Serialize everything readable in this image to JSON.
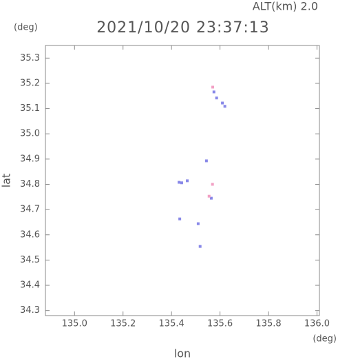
{
  "chart_data": {
    "type": "scatter",
    "title": "2021/10/20 23:37:13",
    "annotation": "ALT(km)  2.0",
    "y_unit": "(deg)",
    "x_unit": "(deg)",
    "x_label": "lon",
    "y_label": "lat",
    "xlim": [
      134.88,
      136.01
    ],
    "ylim": [
      34.28,
      35.35
    ],
    "xticks": [
      {
        "value": 135.0,
        "label": "135.0"
      },
      135.2,
      135.4,
      135.6,
      135.8,
      {
        "value": 136.0,
        "label": "136.0"
      }
    ],
    "yticks": [
      35.3,
      35.2,
      35.1,
      {
        "value": 35.0,
        "label": "35.0"
      },
      34.9,
      34.8,
      34.7,
      34.6,
      34.5,
      34.4,
      34.3
    ],
    "series": [
      {
        "color": "#8888e8",
        "x": [
          135.575,
          135.586,
          135.61,
          135.62,
          135.544,
          135.431,
          135.442,
          135.465,
          135.564,
          135.434,
          135.51,
          135.518
        ],
        "values": [
          35.166,
          35.142,
          35.122,
          35.109,
          34.893,
          34.808,
          34.806,
          34.814,
          34.745,
          34.663,
          34.644,
          34.554
        ]
      },
      {
        "color": "#f2a0c4",
        "x": [
          135.57,
          135.569,
          135.555
        ],
        "values": [
          35.185,
          34.8,
          34.753
        ]
      }
    ]
  }
}
